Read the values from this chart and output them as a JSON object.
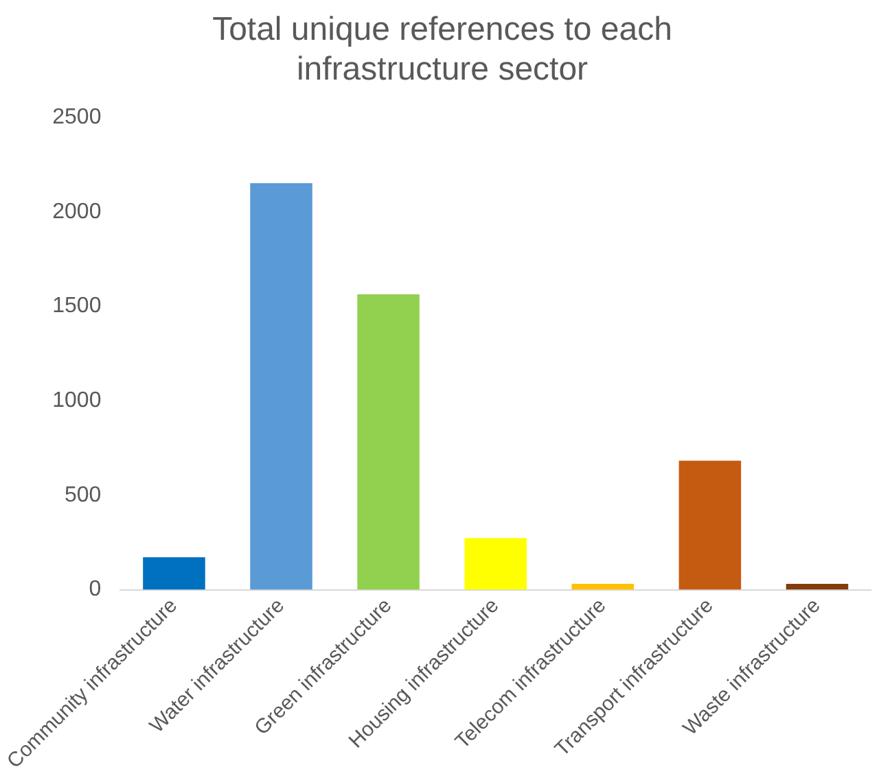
{
  "chart_data": {
    "type": "bar",
    "title": "Total unique references to each infrastructure sector",
    "categories": [
      "Community infrastructure",
      "Water infrastructure",
      "Green infrastructure",
      "Housing infrastructure",
      "Telecom infrastructure",
      "Transport infrastructure",
      "Waste infrastructure"
    ],
    "values": [
      172,
      2152,
      1564,
      274,
      31,
      683,
      31
    ],
    "colors": [
      "#0070c0",
      "#5b9bd5",
      "#92d050",
      "#ffff00",
      "#ffc000",
      "#c55a11",
      "#843c0c"
    ],
    "ylim": [
      0,
      2500
    ],
    "yticks": [
      0,
      500,
      1000,
      1500,
      2000,
      2500
    ],
    "grid": false,
    "legend": false
  }
}
